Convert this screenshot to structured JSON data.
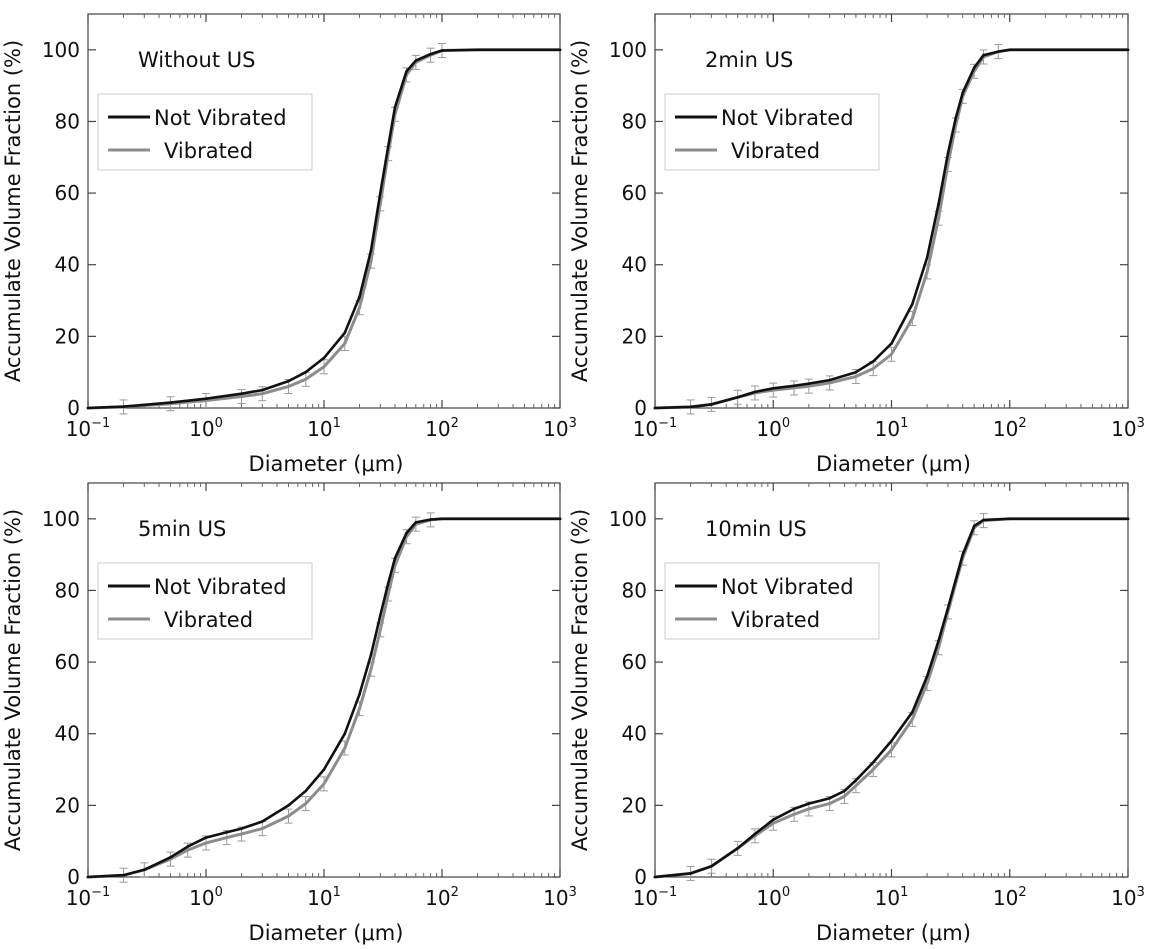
{
  "chart_data": [
    {
      "type": "line",
      "title": "Without US",
      "xlabel": "Diameter (μm)",
      "ylabel": "Accumulate Volume Fraction (%)",
      "xscale": "log",
      "xlim": [
        0.1,
        1000
      ],
      "ylim": [
        0,
        110
      ],
      "x_ticks": [
        "10^-1",
        "10^0",
        "10^1",
        "10^2",
        "10^3"
      ],
      "y_ticks": [
        "0",
        "20",
        "40",
        "60",
        "80",
        "100"
      ],
      "legend_position": "upper-left",
      "grid": false,
      "x": [
        0.1,
        0.2,
        0.5,
        1,
        2,
        3,
        5,
        7,
        10,
        15,
        20,
        25,
        30,
        35,
        40,
        50,
        60,
        80,
        100,
        200,
        1000
      ],
      "series": [
        {
          "name": "Not Vibrated",
          "color": "#111111",
          "error_bars": false,
          "values": [
            0,
            0.4,
            1.5,
            2.6,
            4,
            5,
            7.5,
            10,
            14,
            21,
            31,
            44,
            60,
            73,
            84,
            94,
            97,
            98.8,
            99.8,
            100,
            100
          ]
        },
        {
          "name": "Vibrated",
          "color": "#8c8c8c",
          "error_bars": true,
          "values": [
            0,
            0.3,
            1.2,
            2.1,
            3.2,
            4,
            6,
            8,
            11.5,
            18,
            28,
            41,
            57,
            71,
            82,
            93,
            96.5,
            98.5,
            99.8,
            100,
            100
          ]
        }
      ]
    },
    {
      "type": "line",
      "title": "2min US",
      "xlabel": "Diameter (μm)",
      "ylabel": "Accumulate Volume Fraction (%)",
      "xscale": "log",
      "xlim": [
        0.1,
        1000
      ],
      "ylim": [
        0,
        110
      ],
      "x_ticks": [
        "10^-1",
        "10^0",
        "10^1",
        "10^2",
        "10^3"
      ],
      "y_ticks": [
        "0",
        "20",
        "40",
        "60",
        "80",
        "100"
      ],
      "legend_position": "upper-left",
      "grid": false,
      "x": [
        0.1,
        0.2,
        0.3,
        0.5,
        0.7,
        1,
        1.5,
        2,
        3,
        5,
        7,
        10,
        15,
        20,
        25,
        30,
        35,
        40,
        50,
        60,
        80,
        100,
        1000
      ],
      "series": [
        {
          "name": "Not Vibrated",
          "color": "#111111",
          "error_bars": false,
          "values": [
            0,
            0.3,
            1,
            3,
            4.5,
            5.5,
            6.2,
            6.8,
            7.8,
            10,
            13,
            18,
            29,
            42,
            57,
            71,
            81,
            88,
            95,
            98.5,
            99.5,
            100,
            100
          ]
        },
        {
          "name": "Vibrated",
          "color": "#8c8c8c",
          "error_bars": true,
          "values": [
            0,
            0.3,
            1,
            3,
            4.2,
            5,
            5.6,
            6.1,
            7,
            8.8,
            11,
            15,
            25,
            38,
            53,
            68,
            79,
            87,
            94,
            98,
            99.5,
            100,
            100
          ]
        }
      ]
    },
    {
      "type": "line",
      "title": "5min US",
      "xlabel": "Diameter (μm)",
      "ylabel": "Accumulate Volume Fraction (%)",
      "xscale": "log",
      "xlim": [
        0.1,
        1000
      ],
      "ylim": [
        0,
        110
      ],
      "x_ticks": [
        "10^-1",
        "10^0",
        "10^1",
        "10^2",
        "10^3"
      ],
      "y_ticks": [
        "0",
        "20",
        "40",
        "60",
        "80",
        "100"
      ],
      "legend_position": "upper-left",
      "grid": false,
      "x": [
        0.1,
        0.2,
        0.3,
        0.5,
        0.7,
        1,
        1.5,
        2,
        3,
        5,
        7,
        10,
        15,
        20,
        25,
        30,
        35,
        40,
        50,
        60,
        80,
        100,
        1000
      ],
      "series": [
        {
          "name": "Not Vibrated",
          "color": "#111111",
          "error_bars": false,
          "values": [
            0,
            0.5,
            2,
            5.5,
            8.5,
            11,
            12.5,
            13.5,
            15.5,
            20,
            24,
            30,
            40,
            51,
            62,
            73,
            82,
            89,
            96,
            99,
            99.8,
            100,
            100
          ]
        },
        {
          "name": "Vibrated",
          "color": "#8c8c8c",
          "error_bars": true,
          "values": [
            0,
            0.5,
            2,
            5,
            7.5,
            9.5,
            11,
            12,
            13.5,
            17,
            20.5,
            26,
            36,
            47,
            58,
            69,
            79,
            87,
            95,
            98.5,
            99.7,
            100,
            100
          ]
        }
      ]
    },
    {
      "type": "line",
      "title": "10min US",
      "xlabel": "Diameter (μm)",
      "ylabel": "Accumulate Volume Fraction (%)",
      "xscale": "log",
      "xlim": [
        0.1,
        1000
      ],
      "ylim": [
        0,
        110
      ],
      "x_ticks": [
        "10^-1",
        "10^0",
        "10^1",
        "10^2",
        "10^3"
      ],
      "y_ticks": [
        "0",
        "20",
        "40",
        "60",
        "80",
        "100"
      ],
      "legend_position": "upper-left",
      "grid": false,
      "x": [
        0.1,
        0.2,
        0.3,
        0.5,
        0.7,
        1,
        1.5,
        2,
        3,
        4,
        5,
        7,
        10,
        15,
        20,
        25,
        30,
        40,
        50,
        60,
        100,
        1000
      ],
      "series": [
        {
          "name": "Not Vibrated",
          "color": "#111111",
          "error_bars": false,
          "values": [
            0,
            1,
            3,
            8,
            12,
            16,
            19,
            20.5,
            22,
            24,
            27,
            32,
            38,
            46,
            56,
            66,
            75,
            90,
            98,
            99.7,
            100,
            100
          ]
        },
        {
          "name": "Vibrated",
          "color": "#8c8c8c",
          "error_bars": true,
          "values": [
            0,
            1,
            3,
            8,
            11.5,
            15,
            17.5,
            19,
            20.5,
            22.5,
            25.5,
            30,
            35.5,
            44,
            54,
            64,
            74,
            89,
            97.5,
            99.5,
            100,
            100
          ]
        }
      ]
    }
  ]
}
